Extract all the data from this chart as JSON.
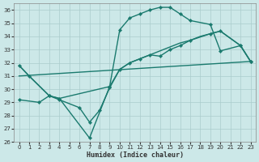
{
  "background_color": "#cce8e8",
  "grid_color": "#aacccc",
  "line_color": "#1a7a6e",
  "xlim": [
    -0.5,
    23.5
  ],
  "ylim": [
    26,
    36.5
  ],
  "xlabel": "Humidex (Indice chaleur)",
  "yticks": [
    26,
    27,
    28,
    29,
    30,
    31,
    32,
    33,
    34,
    35,
    36
  ],
  "xticks": [
    0,
    1,
    2,
    3,
    4,
    5,
    6,
    7,
    8,
    9,
    10,
    11,
    12,
    13,
    14,
    15,
    16,
    17,
    18,
    19,
    20,
    21,
    22,
    23
  ],
  "line1_x": [
    0,
    1,
    3,
    4,
    7,
    9,
    10,
    11,
    12,
    13,
    14,
    15,
    16,
    17,
    19,
    20,
    22,
    23
  ],
  "line1_y": [
    31.8,
    31.0,
    29.5,
    29.3,
    26.3,
    30.2,
    34.5,
    35.4,
    35.7,
    36.0,
    36.2,
    36.2,
    35.7,
    35.2,
    34.9,
    32.9,
    33.3,
    32.1
  ],
  "line2_x": [
    0,
    1,
    3,
    4,
    9,
    10,
    11,
    12,
    13,
    14,
    15,
    16,
    17,
    18,
    19,
    20,
    22,
    23
  ],
  "line2_y": [
    31.8,
    31.0,
    29.5,
    29.3,
    30.2,
    31.5,
    32.0,
    32.3,
    32.6,
    32.9,
    33.2,
    33.5,
    33.7,
    34.0,
    34.2,
    34.4,
    33.3,
    32.1
  ],
  "line3_x": [
    0,
    23
  ],
  "line3_y": [
    31.0,
    32.1
  ],
  "line4_x": [
    0,
    2,
    3,
    4,
    6,
    7,
    8,
    9,
    10,
    11,
    12,
    13,
    14,
    15,
    16,
    17,
    19,
    20,
    22,
    23
  ],
  "line4_y": [
    29.2,
    29.0,
    29.5,
    29.2,
    28.6,
    27.5,
    28.4,
    30.1,
    31.5,
    32.0,
    32.3,
    32.6,
    32.5,
    33.0,
    33.3,
    33.7,
    34.2,
    34.4,
    33.3,
    32.1
  ]
}
